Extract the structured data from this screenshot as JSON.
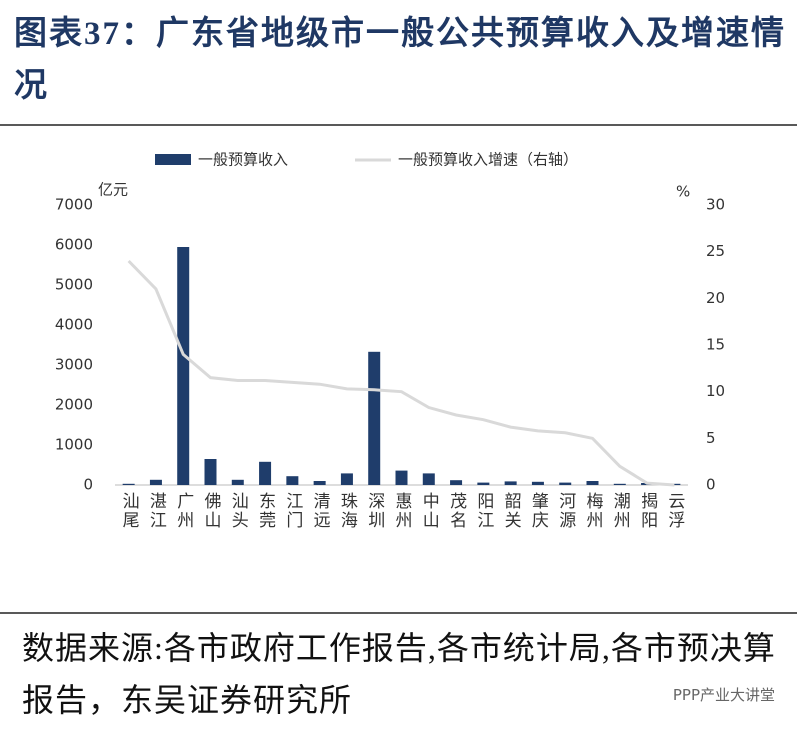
{
  "chart_data": {
    "type": "bar_line",
    "title": "图表37：广东省地级市一般公共预算收入及增速情况",
    "y_label": "亿元",
    "y2_label": "%",
    "categories": [
      "汕尾",
      "湛江",
      "广州",
      "佛山",
      "汕头",
      "东莞",
      "江门",
      "清远",
      "珠海",
      "深圳",
      "惠州",
      "中山",
      "茂名",
      "阳江",
      "韶关",
      "肇庆",
      "河源",
      "梅州",
      "潮州",
      "揭阳",
      "云浮"
    ],
    "series": [
      {
        "name": "一般预算收入",
        "type": "bar",
        "color": "#1f3d6b",
        "values": [
          30,
          130,
          5950,
          650,
          130,
          580,
          220,
          100,
          290,
          3330,
          360,
          290,
          120,
          60,
          90,
          80,
          60,
          100,
          30,
          50,
          30
        ]
      },
      {
        "name": "一般预算收入增速（右轴）",
        "type": "line",
        "axis": "y2",
        "color": "#d9d9d9",
        "values": [
          24,
          21,
          14,
          11.5,
          11.2,
          11.2,
          11,
          10.8,
          10.3,
          10.2,
          10,
          8.3,
          7.5,
          7,
          6.2,
          5.8,
          5.6,
          5,
          2,
          0.2,
          0
        ]
      }
    ],
    "ylim": [
      0,
      7000
    ],
    "yticks": [
      0,
      1000,
      2000,
      3000,
      4000,
      5000,
      6000,
      7000
    ],
    "y2lim": [
      0,
      30
    ],
    "y2ticks": [
      0,
      5,
      10,
      15,
      20,
      25,
      30
    ],
    "source": "数据来源:各市政府工作报告,各市统计局,各市预决算报告，东吴证券研究所",
    "watermark": "PPP产业大讲堂"
  }
}
